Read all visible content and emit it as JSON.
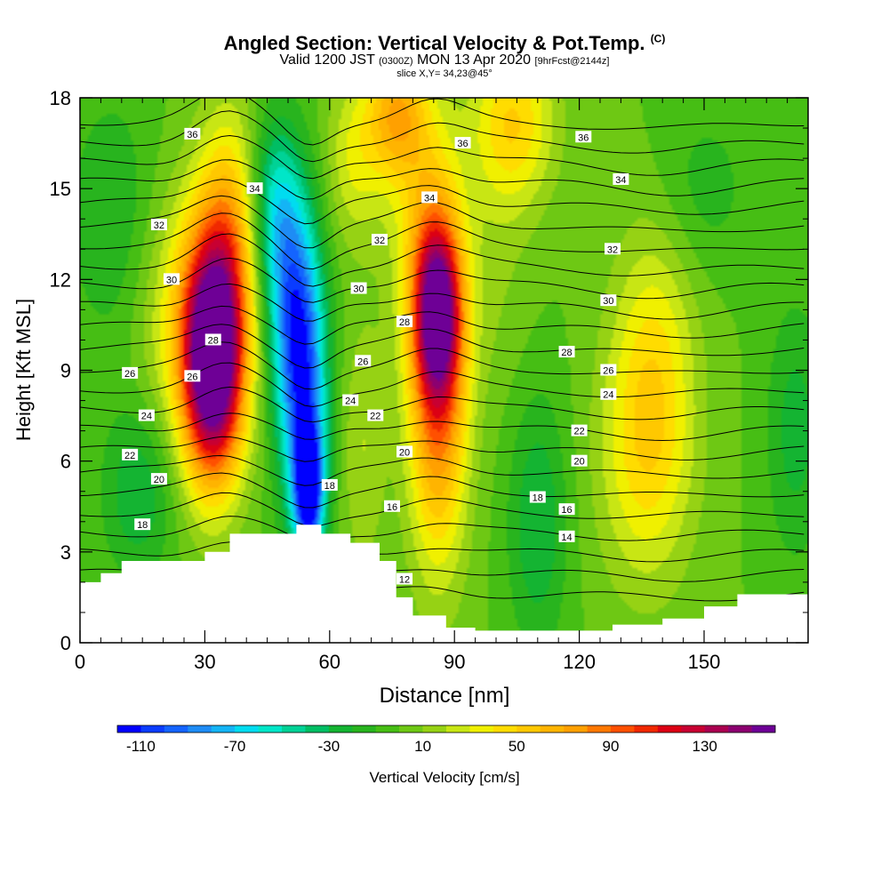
{
  "title": "Angled Section: Vertical Velocity & Pot.Temp.",
  "title_unit": "(C)",
  "subtitle_prefix": "Valid 1200 JST",
  "subtitle_utc": "(0300Z)",
  "subtitle_date": "MON 13 Apr 2020",
  "subtitle_fcst": "[9hrFcst@2144z]",
  "slice_label": "slice X,Y= 34,23@45°",
  "chart_data": {
    "type": "heatmap",
    "title": "Angled Section: Vertical Velocity & Pot.Temp. (C)",
    "xlabel": "Distance [nm]",
    "ylabel": "Height [Kft MSL]",
    "xlim": [
      0,
      175
    ],
    "ylim": [
      0,
      18
    ],
    "x_ticks": [
      0,
      30,
      60,
      90,
      120,
      150
    ],
    "y_ticks": [
      0,
      3,
      6,
      9,
      12,
      15,
      18
    ],
    "colorbar": {
      "label": "Vertical Velocity [cm/s]",
      "ticks": [
        -110,
        -70,
        -30,
        10,
        50,
        90,
        130
      ],
      "min": -120,
      "max": 150,
      "step": 10,
      "colors": [
        "#0000ff",
        "#0a3cff",
        "#1464ff",
        "#1e8cf5",
        "#14b4f5",
        "#00dcf0",
        "#00e6c8",
        "#00d296",
        "#00be64",
        "#14b432",
        "#28b41e",
        "#46be14",
        "#6ec814",
        "#96d214",
        "#c8e614",
        "#f0f000",
        "#ffdc00",
        "#ffc800",
        "#ffb400",
        "#ffa000",
        "#ff7800",
        "#ff5000",
        "#f02800",
        "#dc0014",
        "#c80032",
        "#aa0050",
        "#8c0070",
        "#6e0096"
      ]
    },
    "velocity_cells": [
      {
        "x": 32,
        "y": 9.0,
        "sx": 5,
        "sy": 2.6,
        "v": 140
      },
      {
        "x": 31,
        "y": 10.5,
        "sx": 6,
        "sy": 3,
        "v": 70
      },
      {
        "x": 36,
        "y": 13.5,
        "sx": 5,
        "sy": 3,
        "v": 50
      },
      {
        "x": 54,
        "y": 8.5,
        "sx": 4,
        "sy": 3.5,
        "v": -90
      },
      {
        "x": 50,
        "y": 11.5,
        "sx": 4,
        "sy": 3,
        "v": -60
      },
      {
        "x": 55,
        "y": 5.0,
        "sx": 2.5,
        "sy": 1.5,
        "v": -100
      },
      {
        "x": 46,
        "y": 14.5,
        "sx": 4,
        "sy": 2,
        "v": -40
      },
      {
        "x": 86,
        "y": 8.5,
        "sx": 5,
        "sy": 4,
        "v": 90
      },
      {
        "x": 86,
        "y": 11.0,
        "sx": 4,
        "sy": 2,
        "v": 110
      },
      {
        "x": 82,
        "y": 14.5,
        "sx": 6,
        "sy": 3,
        "v": 30
      },
      {
        "x": 76,
        "y": 17.5,
        "sx": 5,
        "sy": 1.5,
        "v": 60
      },
      {
        "x": 104,
        "y": 17.2,
        "sx": 7,
        "sy": 2,
        "v": 50
      },
      {
        "x": 136,
        "y": 6.0,
        "sx": 8,
        "sy": 3,
        "v": 40
      },
      {
        "x": 138,
        "y": 10.0,
        "sx": 7,
        "sy": 3,
        "v": 30
      },
      {
        "x": 110,
        "y": 4.0,
        "sx": 5,
        "sy": 3,
        "v": -30
      },
      {
        "x": 100,
        "y": 12.0,
        "sx": 6,
        "sy": 3,
        "v": 10
      },
      {
        "x": 150,
        "y": 15.0,
        "sx": 8,
        "sy": 2,
        "v": -15
      },
      {
        "x": 172,
        "y": 7.0,
        "sx": 5,
        "sy": 3,
        "v": -25
      },
      {
        "x": 8,
        "y": 14.0,
        "sx": 8,
        "sy": 3,
        "v": -20
      },
      {
        "x": 14,
        "y": 5.0,
        "sx": 6,
        "sy": 2,
        "v": -30
      },
      {
        "x": 20,
        "y": 11.0,
        "sx": 6,
        "sy": 3,
        "v": 20
      },
      {
        "x": 66,
        "y": 16.0,
        "sx": 5,
        "sy": 2,
        "v": 30
      },
      {
        "x": 68,
        "y": 6.5,
        "sx": 4,
        "sy": 3,
        "v": 20
      }
    ],
    "terrain": [
      [
        0,
        2.0
      ],
      [
        5,
        2.3
      ],
      [
        10,
        2.7
      ],
      [
        18,
        2.7
      ],
      [
        30,
        3.0
      ],
      [
        36,
        3.6
      ],
      [
        48,
        3.6
      ],
      [
        52,
        3.9
      ],
      [
        58,
        3.6
      ],
      [
        65,
        3.3
      ],
      [
        72,
        2.7
      ],
      [
        76,
        1.5
      ],
      [
        80,
        0.9
      ],
      [
        88,
        0.5
      ],
      [
        95,
        0.4
      ],
      [
        120,
        0.4
      ],
      [
        128,
        0.6
      ],
      [
        140,
        0.8
      ],
      [
        150,
        1.2
      ],
      [
        158,
        1.6
      ],
      [
        175,
        1.6
      ]
    ],
    "theta_isolines": [
      {
        "base": 12,
        "label": "12",
        "lx": 78,
        "ly": 2.1
      },
      {
        "base": 13,
        "label": "14",
        "lx": 117,
        "ly": 3.5
      },
      {
        "base": 14,
        "label": "16",
        "lx": 117,
        "ly": 4.4
      },
      {
        "base": 15,
        "label": "18",
        "lx": 15,
        "ly": 3.9
      },
      {
        "base": 16,
        "label": "18",
        "lx": 60,
        "ly": 5.2
      },
      {
        "base": 17,
        "label": "20",
        "lx": 19,
        "ly": 5.4
      },
      {
        "base": 18,
        "label": "20",
        "lx": 78,
        "ly": 6.3
      },
      {
        "base": 19,
        "label": "22",
        "lx": 12,
        "ly": 6.2
      },
      {
        "base": 20,
        "label": "22",
        "lx": 71,
        "ly": 7.5
      },
      {
        "base": 21,
        "label": "24",
        "lx": 16,
        "ly": 7.5
      },
      {
        "base": 22,
        "label": "24",
        "lx": 65,
        "ly": 8.0
      },
      {
        "base": 23,
        "label": "26",
        "lx": 12,
        "ly": 8.9
      },
      {
        "base": 24,
        "label": "26",
        "lx": 68,
        "ly": 9.3
      },
      {
        "base": 25,
        "label": "28",
        "lx": 32,
        "ly": 10.0
      },
      {
        "base": 26,
        "label": "28",
        "lx": 78,
        "ly": 10.6
      },
      {
        "base": 27,
        "label": "30",
        "lx": 22,
        "ly": 12.0
      },
      {
        "base": 28,
        "label": "30",
        "lx": 67,
        "ly": 11.7
      },
      {
        "base": 29,
        "label": "32",
        "lx": 19,
        "ly": 13.8
      },
      {
        "base": 30,
        "label": "32",
        "lx": 72,
        "ly": 13.3
      },
      {
        "base": 31,
        "label": "34",
        "lx": 42,
        "ly": 15.0
      },
      {
        "base": 32,
        "label": "34",
        "lx": 84,
        "ly": 14.7
      },
      {
        "base": 33,
        "label": "36",
        "lx": 92,
        "ly": 16.5
      },
      {
        "base": 34,
        "label": "36",
        "lx": 27,
        "ly": 16.8
      },
      {
        "base": 35,
        "label": "36",
        "lx": 121,
        "ly": 16.7
      }
    ],
    "extra_isoline_labels": [
      {
        "label": "34",
        "lx": 130,
        "ly": 15.3
      },
      {
        "label": "32",
        "lx": 128,
        "ly": 13.0
      },
      {
        "label": "30",
        "lx": 127,
        "ly": 11.3
      },
      {
        "label": "28",
        "lx": 117,
        "ly": 9.6
      },
      {
        "label": "26",
        "lx": 127,
        "ly": 9.0
      },
      {
        "label": "24",
        "lx": 127,
        "ly": 8.2
      },
      {
        "label": "22",
        "lx": 120,
        "ly": 7.0
      },
      {
        "label": "20",
        "lx": 120,
        "ly": 6.0
      },
      {
        "label": "18",
        "lx": 110,
        "ly": 4.8
      },
      {
        "label": "16",
        "lx": 75,
        "ly": 4.5
      },
      {
        "label": "26",
        "lx": 27,
        "ly": 8.8
      }
    ]
  }
}
